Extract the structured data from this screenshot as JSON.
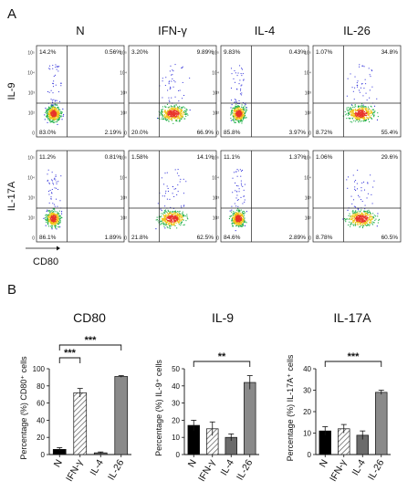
{
  "panel_labels": {
    "a": "A",
    "b": "B"
  },
  "flow": {
    "columns": [
      "N",
      "IFN-γ",
      "IL-4",
      "IL-26"
    ],
    "rows": [
      {
        "label": "IL-9",
        "plots": [
          {
            "ul": "14.2%",
            "ur": "0.56%",
            "ll": "83.0%",
            "lr": "2.19%"
          },
          {
            "ul": "3.20%",
            "ur": "9.89%",
            "ll": "20.0%",
            "lr": "66.9%"
          },
          {
            "ul": "9.83%",
            "ur": "0.43%",
            "ll": "85.8%",
            "lr": "3.97%"
          },
          {
            "ul": "1.07%",
            "ur": "34.8%",
            "ll": "8.72%",
            "lr": "55.4%"
          }
        ]
      },
      {
        "label": "IL-17A",
        "plots": [
          {
            "ul": "11.2%",
            "ur": "0.81%",
            "ll": "86.1%",
            "lr": "1.89%"
          },
          {
            "ul": "1.58%",
            "ur": "14.1%",
            "ll": "21.8%",
            "lr": "62.5%"
          },
          {
            "ul": "11.1%",
            "ur": "1.37%",
            "ll": "84.6%",
            "lr": "2.89%"
          },
          {
            "ul": "1.06%",
            "ur": "29.6%",
            "ll": "8.78%",
            "lr": "60.5%"
          }
        ]
      }
    ],
    "x_axis_label": "CD80",
    "axis_ticks": [
      "10⁵",
      "10⁴",
      "10³",
      "10²",
      "0"
    ],
    "colors": {
      "low": "#2b2bd8",
      "mid": "#22b04a",
      "high": "#f0c419",
      "peak": "#e8342a",
      "gate": "#222222"
    }
  },
  "chart_data": [
    {
      "type": "bar",
      "title": "CD80",
      "ylabel": "Percentage (%) CD80⁺ cells",
      "categories": [
        "N",
        "IFN-γ",
        "IL-4",
        "IL-26"
      ],
      "values": [
        6,
        72,
        2,
        91
      ],
      "errors": [
        2,
        5,
        1,
        1
      ],
      "ylim": [
        0,
        100
      ],
      "yticks": [
        "0",
        "20",
        "40",
        "60",
        "80",
        "100"
      ],
      "significance": [
        {
          "from": 0,
          "to": 1,
          "label": "***"
        },
        {
          "from": 0,
          "to": 3,
          "label": "***"
        }
      ]
    },
    {
      "type": "bar",
      "title": "IL-9",
      "ylabel": "Percentage (%) IL-9⁺ cells",
      "categories": [
        "N",
        "IFN-γ",
        "IL-4",
        "IL-26"
      ],
      "values": [
        17,
        15,
        10,
        42
      ],
      "errors": [
        3,
        4,
        2,
        4
      ],
      "ylim": [
        0,
        50
      ],
      "yticks": [
        "0",
        "10",
        "20",
        "30",
        "40",
        "50"
      ],
      "significance": [
        {
          "from": 0,
          "to": 3,
          "label": "**"
        }
      ]
    },
    {
      "type": "bar",
      "title": "IL-17A",
      "ylabel": "Percentage (%) IL-17A⁺ cells",
      "categories": [
        "N",
        "IFN-γ",
        "IL-4",
        "IL-26"
      ],
      "values": [
        11,
        12,
        9,
        29
      ],
      "errors": [
        2,
        2,
        2,
        1
      ],
      "ylim": [
        0,
        40
      ],
      "yticks": [
        "0",
        "10",
        "20",
        "30",
        "40"
      ],
      "significance": [
        {
          "from": 0,
          "to": 3,
          "label": "***"
        }
      ]
    }
  ]
}
